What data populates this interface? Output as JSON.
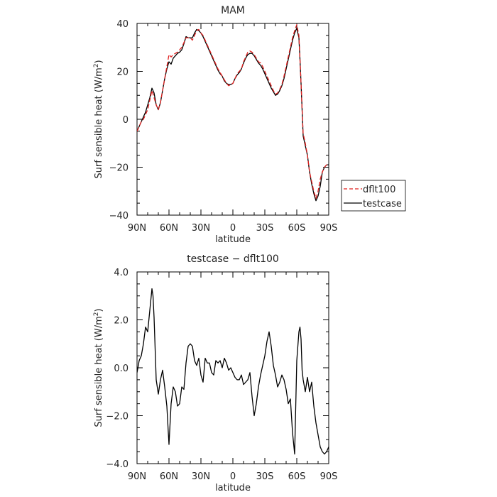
{
  "chart_data": [
    {
      "type": "line",
      "title": "MAM",
      "xlabel": "latitude",
      "ylabel_prefix": "Surf sensible heat (W/m",
      "ylabel_sup": "2",
      "ylabel_suffix": ")",
      "xlim": [
        90,
        -90
      ],
      "ylim": [
        -40,
        40
      ],
      "xticks": [
        90,
        60,
        30,
        0,
        -30,
        -60,
        -90
      ],
      "xtick_labels": [
        "90N",
        "60N",
        "30N",
        "0",
        "30S",
        "60S",
        "90S"
      ],
      "yticks": [
        -40,
        -20,
        0,
        20,
        40
      ],
      "ytick_labels": [
        "−40",
        "−20",
        "0",
        "20",
        "40"
      ],
      "legend_placement": "outside-right",
      "series": [
        {
          "name": "dflt100",
          "color": "#e0201f",
          "dash": "dashed",
          "x": [
            90,
            88,
            86,
            84,
            82,
            80,
            78,
            76,
            74,
            72,
            70,
            68,
            66,
            64,
            62,
            60,
            58,
            56,
            54,
            52,
            50,
            48,
            46,
            44,
            42,
            40,
            38,
            36,
            34,
            32,
            30,
            28,
            26,
            24,
            22,
            20,
            18,
            16,
            14,
            12,
            10,
            8,
            6,
            4,
            2,
            0,
            -2,
            -4,
            -6,
            -8,
            -10,
            -12,
            -14,
            -16,
            -18,
            -20,
            -22,
            -24,
            -26,
            -28,
            -30,
            -32,
            -34,
            -36,
            -38,
            -40,
            -42,
            -44,
            -46,
            -48,
            -50,
            -52,
            -54,
            -56,
            -58,
            -60,
            -62,
            -63,
            -64,
            -65,
            -66,
            -67,
            -68,
            -70,
            -72,
            -74,
            -76,
            -78,
            -80,
            -82,
            -84,
            -86,
            -88,
            -90
          ],
          "y": [
            -5,
            -3,
            -1,
            0,
            2,
            4,
            8,
            12,
            9,
            6,
            4,
            7,
            12,
            17,
            22,
            27,
            26,
            27,
            27.5,
            28,
            29,
            30,
            32,
            34,
            34,
            34,
            33,
            35,
            37,
            37.5,
            36,
            35,
            33,
            31,
            29,
            27,
            25,
            23,
            21,
            19.5,
            18,
            16.5,
            15,
            14,
            14.5,
            15,
            17,
            19,
            20,
            21,
            24,
            26,
            28,
            28.5,
            28,
            27,
            25.5,
            24,
            23.5,
            22,
            20,
            18,
            16,
            14,
            12,
            10.5,
            11,
            12.5,
            14.5,
            18,
            22,
            26,
            30,
            34,
            37,
            39.5,
            35,
            25,
            15,
            4,
            -6,
            -8,
            -10,
            -15,
            -22,
            -26,
            -30,
            -33,
            -30,
            -25,
            -22,
            -20,
            -19,
            -19
          ]
        },
        {
          "name": "testcase",
          "color": "#000000",
          "dash": "solid",
          "x": [
            90,
            88,
            86,
            84,
            82,
            80,
            78,
            76,
            74,
            72,
            70,
            68,
            66,
            64,
            62,
            60,
            58,
            56,
            54,
            52,
            50,
            48,
            46,
            44,
            42,
            40,
            38,
            36,
            34,
            32,
            30,
            28,
            26,
            24,
            22,
            20,
            18,
            16,
            14,
            12,
            10,
            8,
            6,
            4,
            2,
            0,
            -2,
            -4,
            -6,
            -8,
            -10,
            -12,
            -14,
            -16,
            -18,
            -20,
            -22,
            -24,
            -26,
            -28,
            -30,
            -32,
            -34,
            -36,
            -38,
            -40,
            -42,
            -44,
            -46,
            -48,
            -50,
            -52,
            -54,
            -56,
            -58,
            -60,
            -62,
            -63,
            -64,
            -65,
            -66,
            -67,
            -68,
            -70,
            -72,
            -74,
            -76,
            -78,
            -80,
            -82,
            -84,
            -86,
            -88,
            -90
          ],
          "y": [
            -5,
            -3,
            -1,
            1,
            3,
            6,
            9,
            13,
            11,
            6,
            4,
            7,
            12,
            17,
            21,
            24,
            23,
            25.5,
            26.5,
            27.5,
            28,
            29,
            31.5,
            34.5,
            34,
            34,
            34,
            36,
            37.5,
            37,
            36,
            34.5,
            32.5,
            30.5,
            28.5,
            26.5,
            24.5,
            22.5,
            20.5,
            19,
            18,
            16,
            15,
            14.5,
            14.5,
            15,
            17,
            18.5,
            19.5,
            21,
            23.5,
            25.5,
            27,
            27.5,
            27.5,
            26.5,
            25,
            23.5,
            22.5,
            21,
            19,
            17,
            15,
            13,
            11.5,
            10,
            10.5,
            12,
            14,
            17,
            21,
            25,
            29,
            33,
            36,
            38,
            34,
            25,
            15,
            4,
            -7,
            -9,
            -11,
            -15,
            -22,
            -27,
            -31,
            -34,
            -32,
            -28,
            -22,
            -20,
            -19,
            -19
          ]
        }
      ]
    },
    {
      "type": "line",
      "title": "testcase − dflt100",
      "xlabel": "latitude",
      "ylabel_prefix": "Surf sensible heat (W/m",
      "ylabel_sup": "2",
      "ylabel_suffix": ")",
      "xlim": [
        90,
        -90
      ],
      "ylim": [
        -4,
        4
      ],
      "xticks": [
        90,
        60,
        30,
        0,
        -30,
        -60,
        -90
      ],
      "xtick_labels": [
        "90N",
        "60N",
        "30N",
        "0",
        "30S",
        "60S",
        "90S"
      ],
      "yticks": [
        -4,
        -2,
        0,
        2,
        4
      ],
      "ytick_labels": [
        "−4.0",
        "−2.0",
        "0.0",
        "2.0",
        "4.0"
      ],
      "series": [
        {
          "color": "#000000",
          "dash": "solid",
          "x": [
            90,
            88,
            86,
            84,
            82,
            80,
            78,
            76,
            75,
            74,
            72,
            70,
            68,
            66,
            64,
            62,
            60,
            58,
            56,
            54,
            52,
            50,
            48,
            46,
            44,
            42,
            40,
            38,
            36,
            34,
            32,
            30,
            28,
            26,
            24,
            22,
            20,
            18,
            16,
            14,
            12,
            10,
            8,
            6,
            4,
            2,
            0,
            -2,
            -4,
            -6,
            -8,
            -10,
            -12,
            -14,
            -16,
            -18,
            -20,
            -22,
            -24,
            -26,
            -28,
            -30,
            -32,
            -34,
            -36,
            -38,
            -40,
            -42,
            -44,
            -46,
            -48,
            -50,
            -52,
            -54,
            -56,
            -58,
            -60,
            -62,
            -63,
            -64,
            -65,
            -66,
            -68,
            -70,
            -72,
            -74,
            -76,
            -78,
            -80,
            -82,
            -84,
            -86,
            -88,
            -90
          ],
          "y": [
            -0.2,
            0.3,
            0.5,
            1.0,
            1.7,
            1.5,
            2.4,
            3.3,
            3.0,
            2.1,
            -0.5,
            -1.1,
            -0.5,
            -0.1,
            -0.8,
            -1.6,
            -3.2,
            -1.5,
            -0.8,
            -1.0,
            -1.6,
            -1.5,
            -0.8,
            -0.9,
            0.2,
            0.9,
            1.0,
            0.9,
            0.3,
            0.1,
            0.4,
            -0.3,
            -0.6,
            0.4,
            0.2,
            0.2,
            -0.2,
            -0.3,
            0.3,
            0.2,
            0.3,
            0.0,
            0.4,
            0.2,
            -0.1,
            0.0,
            -0.2,
            -0.4,
            -0.5,
            -0.5,
            -0.3,
            -0.7,
            -0.6,
            -0.5,
            -0.2,
            -1.2,
            -2.0,
            -1.5,
            -0.8,
            -0.3,
            0.1,
            0.5,
            1.1,
            1.5,
            0.9,
            0.1,
            -0.3,
            -0.8,
            -0.6,
            -0.3,
            -0.5,
            -0.9,
            -1.5,
            -1.3,
            -2.7,
            -3.6,
            0.3,
            1.5,
            1.7,
            1.2,
            -0.1,
            -0.5,
            -1.0,
            -0.4,
            -1.0,
            -0.6,
            -1.6,
            -2.3,
            -2.8,
            -3.3,
            -3.5,
            -3.6,
            -3.5,
            -3.3
          ]
        }
      ]
    }
  ]
}
